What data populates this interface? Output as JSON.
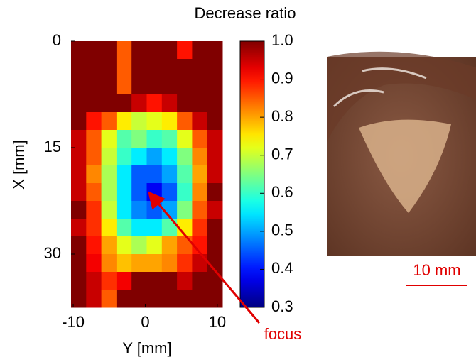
{
  "chart_data": {
    "type": "heatmap",
    "colormap": "jet",
    "y_inverted": true,
    "xlabel": "Y [mm]",
    "ylabel": "X [mm]",
    "xlim": [
      -10.3,
      10.7
    ],
    "xticks": [
      -10,
      0,
      10
    ],
    "ylim": [
      0,
      37.5
    ],
    "yticks": [
      0,
      15,
      30
    ],
    "values": [
      [
        1,
        1,
        1,
        0.85,
        1,
        1,
        1,
        0.9,
        1,
        1
      ],
      [
        1,
        1,
        1,
        0.85,
        1,
        1,
        1,
        1,
        1,
        1
      ],
      [
        1,
        1,
        1,
        0.85,
        1,
        1,
        1,
        1,
        1,
        1
      ],
      [
        1,
        1,
        1,
        1,
        0.95,
        0.9,
        0.95,
        1,
        1,
        1
      ],
      [
        1,
        0.9,
        0.85,
        0.75,
        0.7,
        0.72,
        0.75,
        0.85,
        0.95,
        1
      ],
      [
        0.95,
        0.85,
        0.72,
        0.62,
        0.65,
        0.6,
        0.62,
        0.72,
        0.85,
        0.95
      ],
      [
        0.95,
        0.85,
        0.7,
        0.6,
        0.55,
        0.5,
        0.55,
        0.65,
        0.82,
        0.95
      ],
      [
        0.95,
        0.82,
        0.68,
        0.55,
        0.45,
        0.45,
        0.5,
        0.62,
        0.8,
        0.95
      ],
      [
        0.95,
        0.85,
        0.68,
        0.55,
        0.45,
        0.38,
        0.45,
        0.6,
        0.82,
        1
      ],
      [
        1,
        0.88,
        0.7,
        0.55,
        0.48,
        0.45,
        0.5,
        0.65,
        0.85,
        0.95
      ],
      [
        0.95,
        0.88,
        0.75,
        0.62,
        0.55,
        0.55,
        0.62,
        0.75,
        0.88,
        1
      ],
      [
        1,
        0.9,
        0.8,
        0.72,
        0.68,
        0.72,
        0.8,
        0.85,
        0.9,
        1
      ],
      [
        1,
        0.92,
        0.82,
        0.78,
        0.8,
        0.8,
        0.82,
        0.88,
        0.95,
        1
      ],
      [
        1,
        0.95,
        0.88,
        0.92,
        1,
        1,
        1,
        0.95,
        1,
        1
      ],
      [
        1,
        0.95,
        0.85,
        1,
        1,
        1,
        1,
        1,
        1,
        1
      ]
    ],
    "colorbar": {
      "label": "Decrease ratio",
      "lim": [
        0.3,
        1.0
      ],
      "ticks": [
        0.3,
        0.4,
        0.5,
        0.6,
        0.7,
        0.8,
        0.9,
        {
          "value": 1,
          "label": "1.0"
        }
      ]
    },
    "annotation": "focus",
    "photo_scale_bar": "10 mm"
  }
}
